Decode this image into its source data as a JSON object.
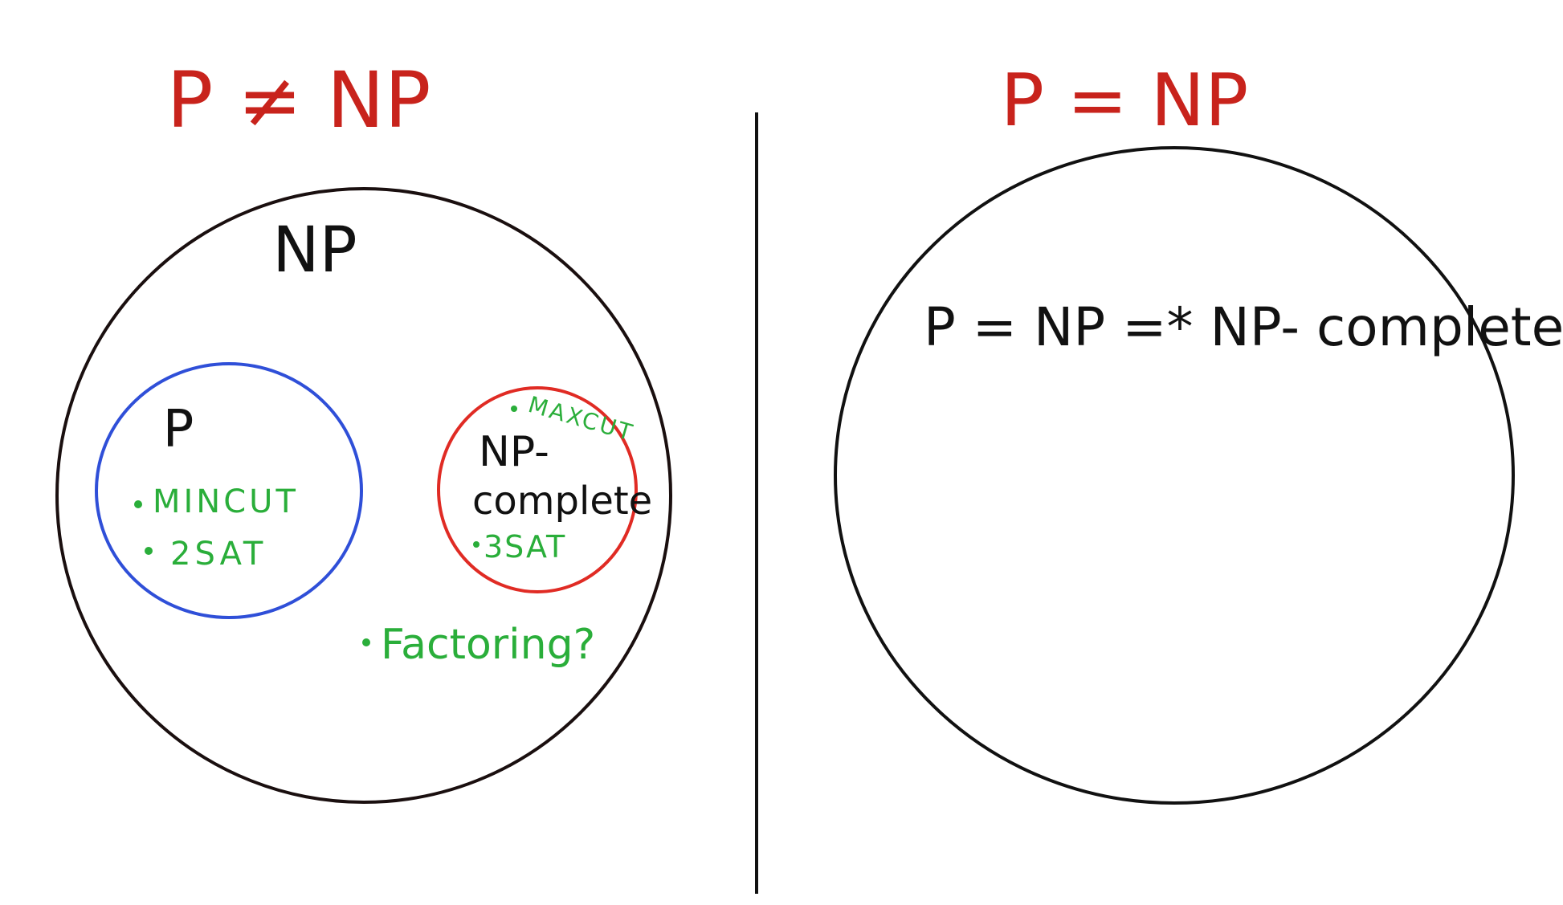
{
  "left_panel": {
    "heading": "P ≠ NP",
    "np_label": "NP",
    "p_set": {
      "label": "P",
      "items": [
        "MINCUT",
        "2SAT"
      ]
    },
    "npc_set": {
      "label_line1": "NP-",
      "label_line2": "complete",
      "top_item": "MAXCUT",
      "bottom_item": "3SAT"
    },
    "outside_item": "Factoring?"
  },
  "right_panel": {
    "heading": "P = NP",
    "label": "P = NP =* NP- complete"
  },
  "colors": {
    "heading": "#c8231c",
    "outline": "#1a0f0f",
    "p_circle": "#2f4fd8",
    "npc_circle": "#e02b24",
    "items": "#2aae3a",
    "text": "#111111"
  }
}
